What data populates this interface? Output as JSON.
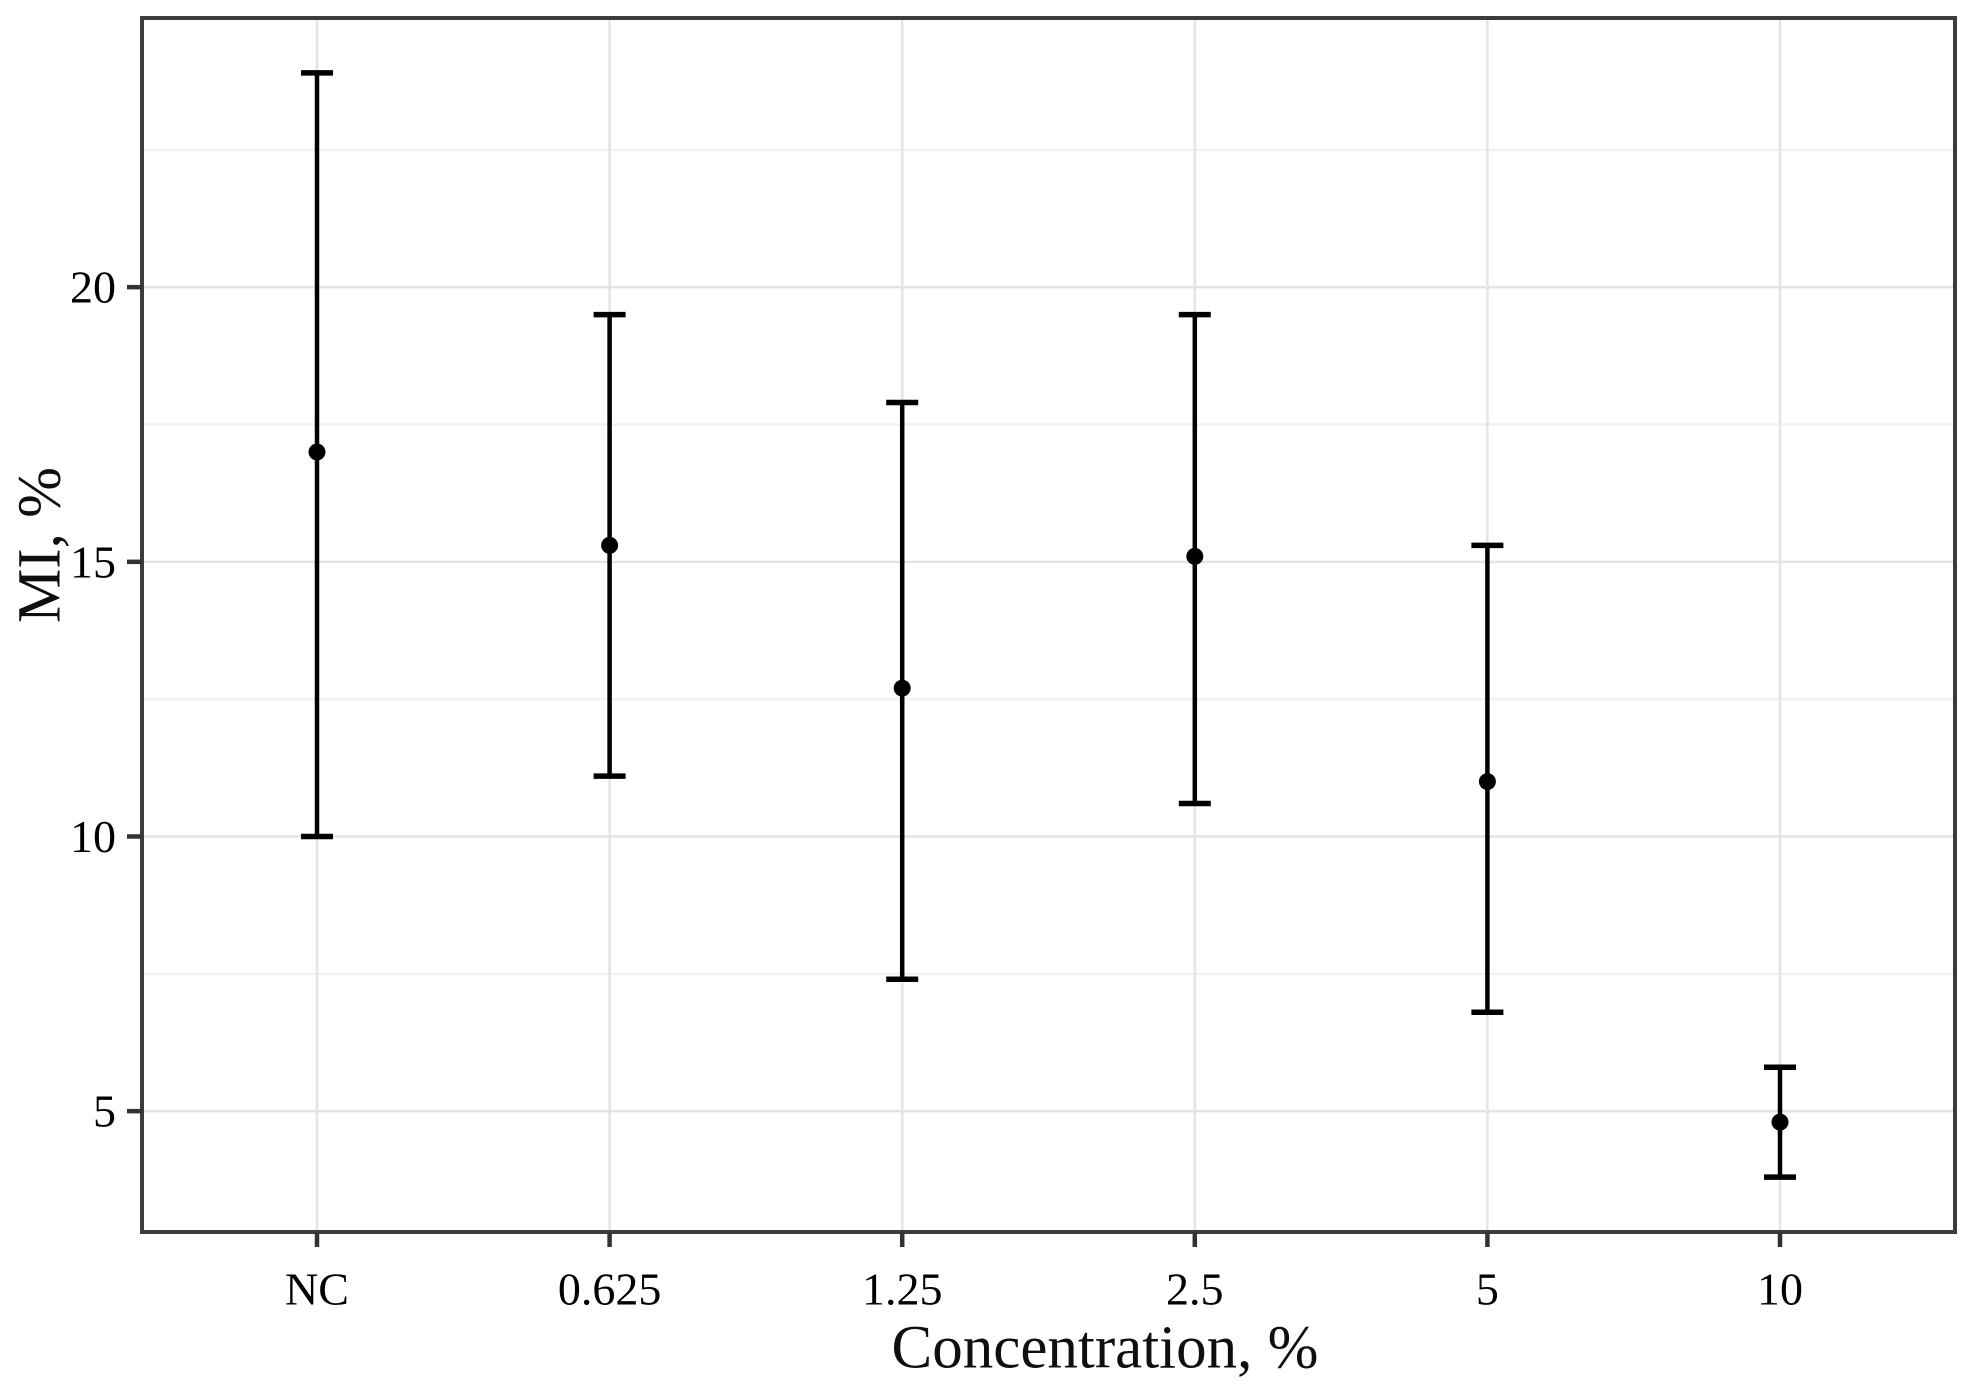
{
  "figure": {
    "kind": "point-range plot with error bars",
    "background": "#ffffff"
  },
  "chart_data": {
    "type": "scatter",
    "subtype": "mean-with-errorbars",
    "title": "",
    "xlabel": "Concentration, %",
    "ylabel": "MI, %",
    "categories": [
      "NC",
      "0.625",
      "1.25",
      "2.5",
      "5",
      "10"
    ],
    "series": [
      {
        "name": "MI",
        "points": [
          {
            "x": "NC",
            "mean": 17.0,
            "lower": 10.0,
            "upper": 23.9
          },
          {
            "x": "0.625",
            "mean": 15.3,
            "lower": 11.1,
            "upper": 19.5
          },
          {
            "x": "1.25",
            "mean": 12.7,
            "lower": 7.4,
            "upper": 17.9
          },
          {
            "x": "2.5",
            "mean": 15.1,
            "lower": 10.6,
            "upper": 19.5
          },
          {
            "x": "5",
            "mean": 11.0,
            "lower": 6.8,
            "upper": 15.3
          },
          {
            "x": "10",
            "mean": 4.8,
            "lower": 3.8,
            "upper": 5.8
          }
        ]
      }
    ],
    "ylim": [
      2.8,
      24.9
    ],
    "y_major_ticks": [
      5,
      10,
      15,
      20
    ],
    "y_minor_ticks": [
      7.5,
      12.5,
      17.5,
      22.5
    ],
    "grid": true,
    "legend": "none",
    "colors": {
      "point": "#000000",
      "errorbar": "#000000",
      "frame": "#3c3c3c",
      "tick": "#333333",
      "grid_major": "#e4e4e4",
      "grid_minor": "#f2f2f2",
      "label": "#0f0f0f",
      "background": "#ffffff"
    }
  }
}
